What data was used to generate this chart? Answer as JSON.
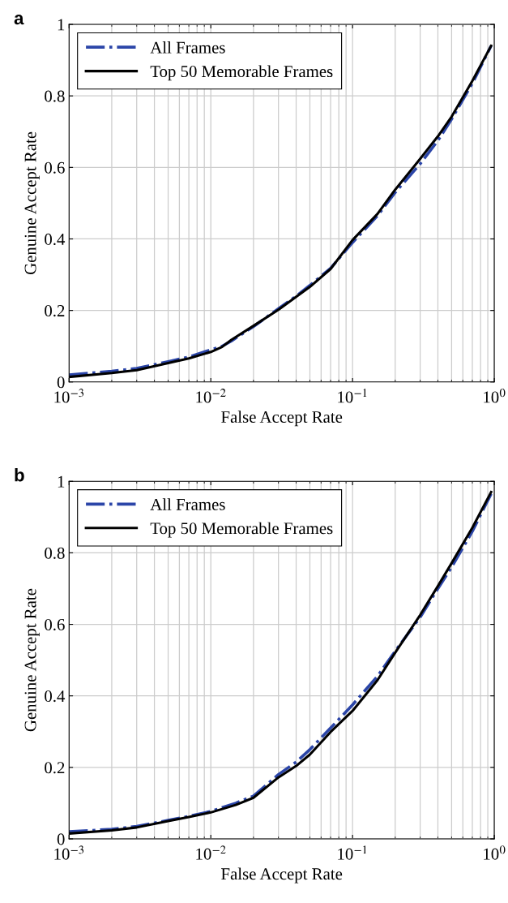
{
  "chart_data": [
    {
      "type": "line",
      "title": "a",
      "xlabel": "False Accept Rate",
      "ylabel": "Genuine Accept Rate",
      "log": "x",
      "xlim": [
        0.001,
        1
      ],
      "xticks": [
        {
          "value": 0.001,
          "label": "10$^{−3}$"
        },
        {
          "value": 0.01,
          "label": "10$^{−2}$"
        },
        {
          "value": 0.1,
          "label": "10$^{−1}$"
        },
        {
          "value": 1,
          "label": "10$^{0}$"
        }
      ],
      "ylim": [
        0,
        1
      ],
      "yticks": [
        0,
        0.2,
        0.4,
        0.6,
        0.8,
        1
      ],
      "grid": true,
      "legend": "top left",
      "series": [
        {
          "name": "All Frames",
          "color": "#2b45a8",
          "line_style": "dashdot",
          "x": [
            0.001,
            0.002,
            0.003,
            0.005,
            0.007,
            0.01,
            0.012,
            0.014,
            0.02,
            0.03,
            0.04,
            0.05,
            0.07,
            0.1,
            0.15,
            0.2,
            0.3,
            0.4,
            0.5,
            0.7,
            0.95
          ],
          "values": [
            0.02,
            0.03,
            0.038,
            0.057,
            0.07,
            0.09,
            0.1,
            0.115,
            0.155,
            0.205,
            0.24,
            0.27,
            0.318,
            0.39,
            0.465,
            0.53,
            0.61,
            0.675,
            0.735,
            0.835,
            0.94
          ]
        },
        {
          "name": "Top 50 Memorable Frames",
          "color": "#000000",
          "line_style": "solid",
          "x": [
            0.001,
            0.002,
            0.003,
            0.005,
            0.007,
            0.01,
            0.012,
            0.014,
            0.02,
            0.03,
            0.05,
            0.07,
            0.1,
            0.15,
            0.2,
            0.3,
            0.4,
            0.5,
            0.7,
            0.95
          ],
          "values": [
            0.014,
            0.025,
            0.033,
            0.053,
            0.066,
            0.084,
            0.098,
            0.118,
            0.157,
            0.202,
            0.266,
            0.316,
            0.397,
            0.47,
            0.538,
            0.624,
            0.687,
            0.742,
            0.842,
            0.94
          ]
        }
      ]
    },
    {
      "type": "line",
      "title": "b",
      "xlabel": "False Accept Rate",
      "ylabel": "Genuine Accept Rate",
      "log": "x",
      "xlim": [
        0.001,
        1
      ],
      "xticks": [
        {
          "value": 0.001,
          "label": "10$^{−3}$"
        },
        {
          "value": 0.01,
          "label": "10$^{−2}$"
        },
        {
          "value": 0.1,
          "label": "10$^{−1}$"
        },
        {
          "value": 1,
          "label": "10$^{0}$"
        }
      ],
      "ylim": [
        0,
        1
      ],
      "yticks": [
        0,
        0.2,
        0.4,
        0.6,
        0.8,
        1
      ],
      "grid": true,
      "legend": "top left",
      "series": [
        {
          "name": "All Frames",
          "color": "#2b45a8",
          "line_style": "dashdot",
          "x": [
            0.001,
            0.002,
            0.003,
            0.005,
            0.007,
            0.01,
            0.015,
            0.02,
            0.03,
            0.04,
            0.05,
            0.07,
            0.1,
            0.15,
            0.2,
            0.3,
            0.4,
            0.5,
            0.7,
            0.95
          ],
          "values": [
            0.02,
            0.027,
            0.035,
            0.052,
            0.063,
            0.077,
            0.1,
            0.12,
            0.18,
            0.215,
            0.25,
            0.31,
            0.375,
            0.455,
            0.525,
            0.62,
            0.7,
            0.76,
            0.86,
            0.965
          ]
        },
        {
          "name": "Top 50 Memorable Frames",
          "color": "#000000",
          "line_style": "solid",
          "x": [
            0.001,
            0.002,
            0.003,
            0.005,
            0.007,
            0.01,
            0.015,
            0.02,
            0.03,
            0.04,
            0.05,
            0.07,
            0.1,
            0.15,
            0.2,
            0.3,
            0.4,
            0.5,
            0.7,
            0.95
          ],
          "values": [
            0.015,
            0.024,
            0.032,
            0.05,
            0.061,
            0.074,
            0.095,
            0.115,
            0.172,
            0.204,
            0.236,
            0.299,
            0.358,
            0.444,
            0.521,
            0.626,
            0.707,
            0.771,
            0.87,
            0.97
          ]
        }
      ]
    }
  ]
}
